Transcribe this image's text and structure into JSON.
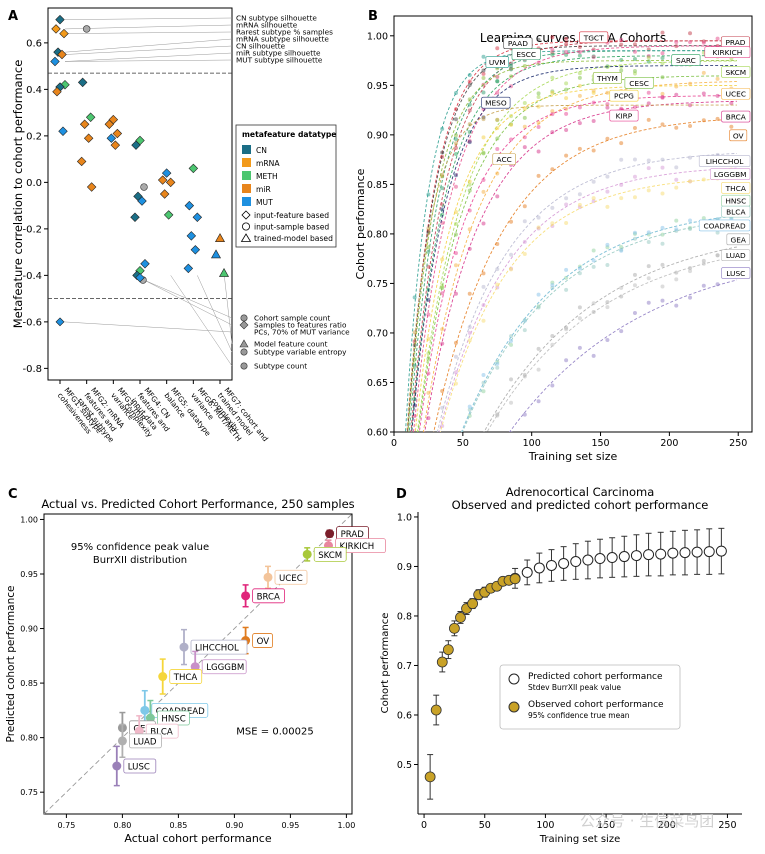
{
  "watermark": "公众号 · 生信菜鸟团",
  "chart_data": [
    {
      "panel": "A",
      "type": "scatter",
      "ylabel": "Metafeature correlation to cohort performance",
      "ylim": [
        -0.85,
        0.75
      ],
      "yticks": [
        0.6,
        0.4,
        0.2,
        0.0,
        -0.2,
        -0.4,
        -0.6,
        -0.8
      ],
      "categories": [
        "MFG1: subtype cohesiveness",
        "MFG2: mRNA features and rarest subtype",
        "MFG3: miR variance",
        "MFG4: CN features and input data complexity",
        "MFG5: datatype balance",
        "MFG6: MUT/METH variance",
        "MFG7: cohort and trained model complexity"
      ],
      "legend_title": "metafeature datatype",
      "datatypes": [
        {
          "name": "CN",
          "color": "#1b6e86"
        },
        {
          "name": "mRNA",
          "color": "#f29a1b"
        },
        {
          "name": "METH",
          "color": "#4cc670"
        },
        {
          "name": "miR",
          "color": "#e8851c"
        },
        {
          "name": "MUT",
          "color": "#1e90e0"
        }
      ],
      "shapes": [
        "input-feature based",
        "input-sample based",
        "trained-model based"
      ],
      "thresholds": [
        0.47,
        -0.5
      ],
      "annotations_top": [
        "CN subtype silhouette",
        "mRNA silhouette",
        "Rarest subtype % samples",
        "mRNA subtype silhouette",
        "CN silhouette",
        "miR subtype silhouette",
        "MUT subtype silhouette"
      ],
      "annotations_bottom": [
        "Cohort sample count",
        "Samples to features ratio",
        "PCs, 70% of MUT variance",
        "Model feature count",
        "Subtype variable entropy",
        "Subtype count"
      ],
      "points": [
        {
          "g": 1,
          "y": 0.7,
          "c": "CN",
          "s": "d"
        },
        {
          "g": 1,
          "y": 0.66,
          "c": "mRNA",
          "s": "d"
        },
        {
          "g": 1,
          "y": 0.64,
          "c": "mRNA",
          "s": "d"
        },
        {
          "g": 1,
          "y": 0.56,
          "c": "CN",
          "s": "d"
        },
        {
          "g": 1,
          "y": 0.55,
          "c": "miR",
          "s": "d"
        },
        {
          "g": 1,
          "y": 0.52,
          "c": "MUT",
          "s": "d"
        },
        {
          "g": 1,
          "y": 0.42,
          "c": "METH",
          "s": "d"
        },
        {
          "g": 1,
          "y": 0.41,
          "c": "CN",
          "s": "d"
        },
        {
          "g": 1,
          "y": 0.39,
          "c": "miR",
          "s": "d"
        },
        {
          "g": 1,
          "y": 0.22,
          "c": "MUT",
          "s": "d"
        },
        {
          "g": 2,
          "y": 0.66,
          "c": "CN",
          "s": "o"
        },
        {
          "g": 2,
          "y": 0.43,
          "c": "CN",
          "s": "d"
        },
        {
          "g": 2,
          "y": 0.28,
          "c": "METH",
          "s": "d"
        },
        {
          "g": 2,
          "y": 0.25,
          "c": "miR",
          "s": "d"
        },
        {
          "g": 2,
          "y": 0.19,
          "c": "miR",
          "s": "d"
        },
        {
          "g": 2,
          "y": 0.09,
          "c": "miR",
          "s": "d"
        },
        {
          "g": 2,
          "y": -0.02,
          "c": "miR",
          "s": "d"
        },
        {
          "g": 3,
          "y": 0.27,
          "c": "miR",
          "s": "d"
        },
        {
          "g": 3,
          "y": 0.25,
          "c": "miR",
          "s": "d"
        },
        {
          "g": 3,
          "y": 0.21,
          "c": "miR",
          "s": "d"
        },
        {
          "g": 3,
          "y": 0.19,
          "c": "MUT",
          "s": "d"
        },
        {
          "g": 3,
          "y": 0.16,
          "c": "miR",
          "s": "d"
        },
        {
          "g": 4,
          "y": 0.18,
          "c": "METH",
          "s": "d"
        },
        {
          "g": 4,
          "y": 0.16,
          "c": "CN",
          "s": "d"
        },
        {
          "g": 4,
          "y": -0.02,
          "c": "CN",
          "s": "o"
        },
        {
          "g": 4,
          "y": -0.06,
          "c": "CN",
          "s": "d"
        },
        {
          "g": 4,
          "y": -0.08,
          "c": "MUT",
          "s": "d"
        },
        {
          "g": 4,
          "y": -0.15,
          "c": "CN",
          "s": "d"
        },
        {
          "g": 4,
          "y": -0.35,
          "c": "MUT",
          "s": "d"
        },
        {
          "g": 4,
          "y": -0.38,
          "c": "METH",
          "s": "d"
        },
        {
          "g": 4,
          "y": -0.4,
          "c": "CN",
          "s": "d"
        },
        {
          "g": 4,
          "y": -0.42,
          "c": "CN",
          "s": "o"
        },
        {
          "g": 4,
          "y": -0.41,
          "c": "MUT",
          "s": "d"
        },
        {
          "g": 5,
          "y": 0.04,
          "c": "MUT",
          "s": "d"
        },
        {
          "g": 5,
          "y": 0.01,
          "c": "miR",
          "s": "d"
        },
        {
          "g": 5,
          "y": 0.0,
          "c": "miR",
          "s": "d"
        },
        {
          "g": 5,
          "y": -0.05,
          "c": "miR",
          "s": "d"
        },
        {
          "g": 5,
          "y": -0.14,
          "c": "METH",
          "s": "d"
        },
        {
          "g": 6,
          "y": 0.06,
          "c": "METH",
          "s": "d"
        },
        {
          "g": 6,
          "y": -0.1,
          "c": "MUT",
          "s": "d"
        },
        {
          "g": 6,
          "y": -0.15,
          "c": "MUT",
          "s": "d"
        },
        {
          "g": 6,
          "y": -0.23,
          "c": "MUT",
          "s": "d"
        },
        {
          "g": 6,
          "y": -0.29,
          "c": "MUT",
          "s": "d"
        },
        {
          "g": 6,
          "y": -0.37,
          "c": "MUT",
          "s": "d"
        },
        {
          "g": 7,
          "y": -0.24,
          "c": "miR",
          "s": "t"
        },
        {
          "g": 7,
          "y": -0.31,
          "c": "MUT",
          "s": "t"
        },
        {
          "g": 7,
          "y": -0.39,
          "c": "METH",
          "s": "t"
        }
      ]
    },
    {
      "panel": "B",
      "type": "line",
      "title": "Learning curves, TCGA Cohorts",
      "xlabel": "Training set size",
      "ylabel": "Cohort performance",
      "xlim": [
        0,
        260
      ],
      "ylim": [
        0.6,
        1.02
      ],
      "xticks": [
        0,
        50,
        100,
        150,
        200,
        250
      ],
      "yticks": [
        0.6,
        0.65,
        0.7,
        0.75,
        0.8,
        0.85,
        0.9,
        0.95,
        1.0
      ],
      "series": [
        {
          "name": "TGCT",
          "color": "#d7303f",
          "plateau": 0.995,
          "k": 0.05,
          "end": 130
        },
        {
          "name": "PAAD",
          "color": "#444444",
          "plateau": 0.99,
          "k": 0.05,
          "end": 110
        },
        {
          "name": "PRAD",
          "color": "#c23b4a",
          "plateau": 0.995,
          "k": 0.04,
          "end": 250
        },
        {
          "name": "ESCC",
          "color": "#2c9c6c",
          "plateau": 0.985,
          "k": 0.045,
          "end": 100
        },
        {
          "name": "UVM",
          "color": "#2a9d8f",
          "plateau": 0.985,
          "k": 0.06,
          "end": 70
        },
        {
          "name": "SARC",
          "color": "#2ca25f",
          "plateau": 0.98,
          "k": 0.04,
          "end": 200
        },
        {
          "name": "KIRKICH",
          "color": "#e64a8a",
          "plateau": 0.99,
          "k": 0.035,
          "end": 250
        },
        {
          "name": "THYM",
          "color": "#8fbc3a",
          "plateau": 0.975,
          "k": 0.05,
          "end": 100
        },
        {
          "name": "SKCM",
          "color": "#a6d854",
          "plateau": 0.975,
          "k": 0.03,
          "end": 250
        },
        {
          "name": "MESO",
          "color": "#1c2c6e",
          "plateau": 0.97,
          "k": 0.04,
          "end": 70
        },
        {
          "name": "CESC",
          "color": "#7bc043",
          "plateau": 0.96,
          "k": 0.03,
          "end": 200
        },
        {
          "name": "UCEC",
          "color": "#f5b041",
          "plateau": 0.955,
          "k": 0.025,
          "end": 250
        },
        {
          "name": "PCPG",
          "color": "#f4d03f",
          "plateau": 0.95,
          "k": 0.035,
          "end": 150
        },
        {
          "name": "KIRP",
          "color": "#e84393",
          "plateau": 0.94,
          "k": 0.03,
          "end": 200
        },
        {
          "name": "BRCA",
          "color": "#d6338a",
          "plateau": 0.935,
          "k": 0.025,
          "end": 250
        },
        {
          "name": "OV",
          "color": "#e67e22",
          "plateau": 0.92,
          "k": 0.02,
          "end": 250
        },
        {
          "name": "ACC",
          "color": "#c6a04a",
          "plateau": 0.93,
          "k": 0.06,
          "end": 80
        },
        {
          "name": "LIHCCHOL",
          "color": "#b8b8d0",
          "plateau": 0.885,
          "k": 0.02,
          "end": 250
        },
        {
          "name": "LGGGBM",
          "color": "#d69ad6",
          "plateau": 0.87,
          "k": 0.02,
          "end": 250
        },
        {
          "name": "THCA",
          "color": "#f7dc6f",
          "plateau": 0.86,
          "k": 0.02,
          "end": 250
        },
        {
          "name": "HNSC",
          "color": "#8fd19e",
          "plateau": 0.83,
          "k": 0.015,
          "end": 250
        },
        {
          "name": "BLCA",
          "color": "#93c8c0",
          "plateau": 0.825,
          "k": 0.015,
          "end": 250
        },
        {
          "name": "COADREAD",
          "color": "#85c1e9",
          "plateau": 0.83,
          "k": 0.015,
          "end": 250
        },
        {
          "name": "GEA",
          "color": "#aaaaaa",
          "plateau": 0.81,
          "k": 0.012,
          "end": 250
        },
        {
          "name": "LUAD",
          "color": "#bbbbbb",
          "plateau": 0.8,
          "k": 0.012,
          "end": 250
        },
        {
          "name": "LUSC",
          "color": "#8e7cc3",
          "plateau": 0.79,
          "k": 0.01,
          "end": 250
        }
      ]
    },
    {
      "panel": "C",
      "type": "scatter",
      "title": "Actual vs. Predicted Cohort Performance, 250 samples",
      "xlabel": "Actual cohort performance",
      "ylabel": "Predicted cohort performance",
      "xlim": [
        0.73,
        1.005
      ],
      "ylim": [
        0.73,
        1.005
      ],
      "xticks": [
        0.75,
        0.8,
        0.85,
        0.9,
        0.95,
        1.0
      ],
      "yticks": [
        0.75,
        0.8,
        0.85,
        0.9,
        0.95,
        1.0
      ],
      "note_lines": [
        "95% confidence peak value",
        "BurrXII distribution"
      ],
      "mse": "MSE = 0.00025",
      "points": [
        {
          "name": "PRAD",
          "x": 0.985,
          "y": 0.987,
          "err": 0.003,
          "color": "#7b1e2b"
        },
        {
          "name": "KIRKICH",
          "x": 0.984,
          "y": 0.976,
          "err": 0.005,
          "color": "#e8869e"
        },
        {
          "name": "SKCM",
          "x": 0.965,
          "y": 0.968,
          "err": 0.006,
          "color": "#a8c83a"
        },
        {
          "name": "UCEC",
          "x": 0.93,
          "y": 0.947,
          "err": 0.01,
          "color": "#f3c49a"
        },
        {
          "name": "BRCA",
          "x": 0.91,
          "y": 0.93,
          "err": 0.01,
          "color": "#e0247a"
        },
        {
          "name": "OV",
          "x": 0.91,
          "y": 0.889,
          "err": 0.012,
          "color": "#e07b1e"
        },
        {
          "name": "LIHCCHOL",
          "x": 0.855,
          "y": 0.883,
          "err": 0.016,
          "color": "#b0b0c8"
        },
        {
          "name": "LGGGBM",
          "x": 0.865,
          "y": 0.865,
          "err": 0.014,
          "color": "#c890c8"
        },
        {
          "name": "THCA",
          "x": 0.836,
          "y": 0.856,
          "err": 0.016,
          "color": "#f5d63a"
        },
        {
          "name": "COADREAD",
          "x": 0.82,
          "y": 0.825,
          "err": 0.018,
          "color": "#7ec8e8"
        },
        {
          "name": "HNSC",
          "x": 0.825,
          "y": 0.818,
          "err": 0.016,
          "color": "#7ec89a"
        },
        {
          "name": "GEA",
          "x": 0.8,
          "y": 0.809,
          "err": 0.014,
          "color": "#9a9a9a"
        },
        {
          "name": "BLCA",
          "x": 0.815,
          "y": 0.806,
          "err": 0.014,
          "color": "#f0b8c8"
        },
        {
          "name": "LUAD",
          "x": 0.8,
          "y": 0.797,
          "err": 0.015,
          "color": "#b0b0b0"
        },
        {
          "name": "LUSC",
          "x": 0.795,
          "y": 0.774,
          "err": 0.018,
          "color": "#9a80b8"
        }
      ]
    },
    {
      "panel": "D",
      "type": "scatter",
      "title": "Adrenocortical Carcinoma",
      "subtitle": "Observed and predicted cohort performance",
      "xlabel": "Training set size",
      "ylabel": "Cohort performance",
      "xlim": [
        -5,
        262
      ],
      "ylim": [
        0.4,
        1.01
      ],
      "xticks": [
        0,
        50,
        100,
        150,
        200,
        250
      ],
      "yticks": [
        0.5,
        0.6,
        0.7,
        0.8,
        0.9,
        1.0
      ],
      "legend": [
        {
          "label": "Predicted cohort performance",
          "sub": "Stdev BurrXII peak value"
        },
        {
          "label": "Observed cohort performance",
          "sub": "95% confidence true mean"
        }
      ],
      "observed": {
        "x": [
          5,
          10,
          15,
          20,
          25,
          30,
          35,
          40,
          45,
          50,
          55,
          60,
          65,
          70,
          75
        ],
        "y": [
          0.475,
          0.61,
          0.707,
          0.732,
          0.775,
          0.797,
          0.815,
          0.825,
          0.843,
          0.848,
          0.856,
          0.86,
          0.87,
          0.872,
          0.875
        ],
        "err": [
          0.045,
          0.03,
          0.02,
          0.018,
          0.015,
          0.012,
          0.012,
          0.01,
          0.01,
          0.01,
          0.008,
          0.008,
          0.008,
          0.008,
          0.006
        ]
      },
      "predicted": {
        "x": [
          75,
          85,
          95,
          105,
          115,
          125,
          135,
          145,
          155,
          165,
          175,
          185,
          195,
          205,
          215,
          225,
          235,
          245
        ],
        "y": [
          0.876,
          0.888,
          0.897,
          0.902,
          0.906,
          0.91,
          0.913,
          0.916,
          0.918,
          0.92,
          0.922,
          0.924,
          0.925,
          0.927,
          0.928,
          0.929,
          0.93,
          0.931
        ],
        "err": [
          0.02,
          0.025,
          0.03,
          0.032,
          0.034,
          0.036,
          0.038,
          0.039,
          0.04,
          0.041,
          0.042,
          0.043,
          0.044,
          0.044,
          0.045,
          0.045,
          0.046,
          0.046
        ]
      }
    }
  ]
}
